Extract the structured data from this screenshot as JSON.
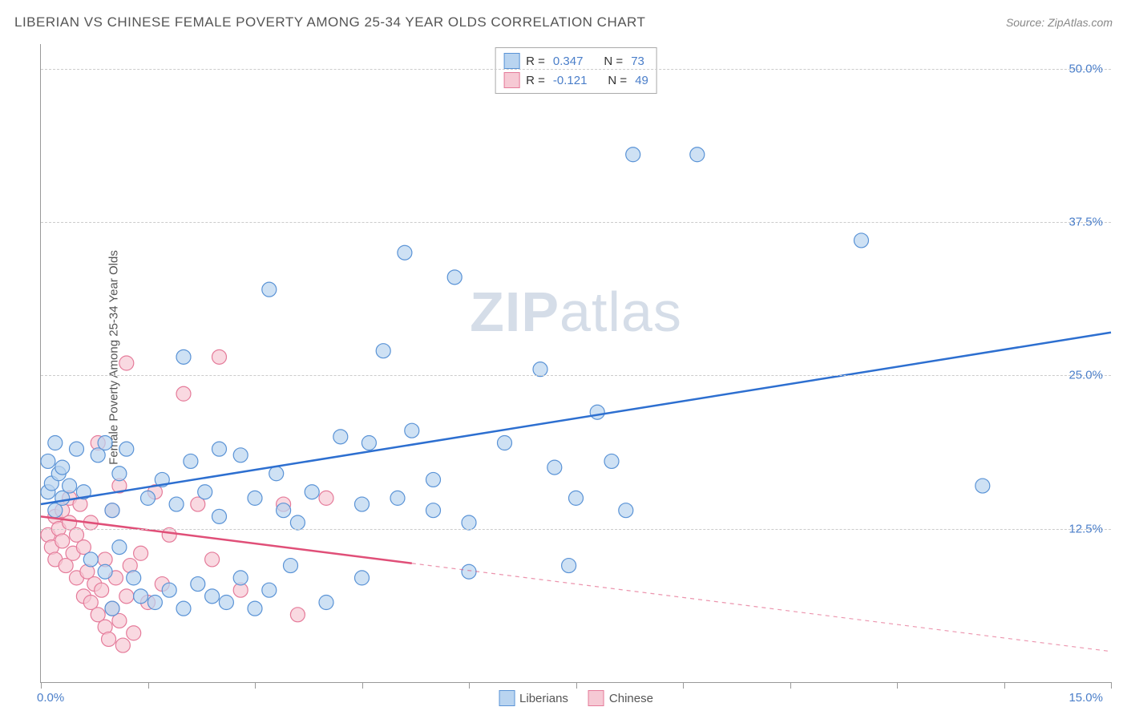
{
  "header": {
    "title": "LIBERIAN VS CHINESE FEMALE POVERTY AMONG 25-34 YEAR OLDS CORRELATION CHART",
    "source": "Source: ZipAtlas.com"
  },
  "chart": {
    "type": "scatter",
    "ylabel": "Female Poverty Among 25-34 Year Olds",
    "xlim": [
      0,
      15
    ],
    "ylim": [
      0,
      52
    ],
    "x_tick_positions": [
      0,
      1.5,
      3,
      4.5,
      6,
      7.5,
      9,
      10.5,
      12,
      13.5,
      15
    ],
    "x_tick_labels": {
      "left": "0.0%",
      "right": "15.0%"
    },
    "y_gridlines": [
      12.5,
      25.0,
      37.5,
      50.0
    ],
    "y_tick_labels": [
      "12.5%",
      "25.0%",
      "37.5%",
      "50.0%"
    ],
    "background_color": "#ffffff",
    "grid_color": "#cccccc",
    "axis_color": "#999999",
    "tick_label_color": "#4a7ec9",
    "watermark": "ZIPatlas",
    "series": {
      "liberians": {
        "label": "Liberians",
        "marker_fill": "#b9d4f0",
        "marker_stroke": "#5a93d6",
        "line_color": "#2d6fd0",
        "line_width": 2.5,
        "marker_radius": 9,
        "regression": {
          "x1": 0,
          "y1": 14.5,
          "x2": 15,
          "y2": 28.5,
          "solid_to_x": 15
        },
        "points": [
          [
            0.1,
            15.5
          ],
          [
            0.2,
            14.0
          ],
          [
            0.15,
            16.2
          ],
          [
            0.25,
            17.0
          ],
          [
            0.3,
            15.0
          ],
          [
            0.1,
            18.0
          ],
          [
            0.2,
            19.5
          ],
          [
            0.3,
            17.5
          ],
          [
            0.4,
            16.0
          ],
          [
            0.5,
            19.0
          ],
          [
            0.6,
            15.5
          ],
          [
            0.8,
            18.5
          ],
          [
            0.9,
            19.5
          ],
          [
            1.0,
            14.0
          ],
          [
            1.1,
            17.0
          ],
          [
            1.2,
            19.0
          ],
          [
            0.7,
            10.0
          ],
          [
            0.9,
            9.0
          ],
          [
            1.1,
            11.0
          ],
          [
            1.3,
            8.5
          ],
          [
            1.4,
            7.0
          ],
          [
            1.6,
            6.5
          ],
          [
            1.8,
            7.5
          ],
          [
            2.0,
            6.0
          ],
          [
            2.2,
            8.0
          ],
          [
            2.4,
            7.0
          ],
          [
            2.6,
            6.5
          ],
          [
            2.8,
            8.5
          ],
          [
            3.0,
            6.0
          ],
          [
            3.2,
            7.5
          ],
          [
            1.5,
            15.0
          ],
          [
            1.7,
            16.5
          ],
          [
            1.9,
            14.5
          ],
          [
            2.1,
            18.0
          ],
          [
            2.3,
            15.5
          ],
          [
            2.0,
            26.5
          ],
          [
            2.5,
            19.0
          ],
          [
            2.8,
            18.5
          ],
          [
            3.0,
            15.0
          ],
          [
            3.3,
            17.0
          ],
          [
            3.2,
            32.0
          ],
          [
            3.4,
            14.0
          ],
          [
            3.6,
            13.0
          ],
          [
            3.8,
            15.5
          ],
          [
            4.0,
            6.5
          ],
          [
            4.2,
            20.0
          ],
          [
            4.5,
            14.5
          ],
          [
            4.6,
            19.5
          ],
          [
            4.8,
            27.0
          ],
          [
            5.0,
            15.0
          ],
          [
            5.1,
            35.0
          ],
          [
            5.2,
            20.5
          ],
          [
            5.5,
            16.5
          ],
          [
            5.5,
            14.0
          ],
          [
            5.8,
            33.0
          ],
          [
            6.0,
            13.0
          ],
          [
            6.5,
            19.5
          ],
          [
            7.0,
            25.5
          ],
          [
            7.2,
            17.5
          ],
          [
            7.4,
            9.5
          ],
          [
            7.5,
            15.0
          ],
          [
            7.8,
            22.0
          ],
          [
            8.0,
            18.0
          ],
          [
            8.2,
            14.0
          ],
          [
            8.3,
            43.0
          ],
          [
            9.2,
            43.0
          ],
          [
            11.5,
            36.0
          ],
          [
            13.2,
            16.0
          ],
          [
            6.0,
            9.0
          ],
          [
            4.5,
            8.5
          ],
          [
            3.5,
            9.5
          ],
          [
            1.0,
            6.0
          ],
          [
            2.5,
            13.5
          ]
        ]
      },
      "chinese": {
        "label": "Chinese",
        "marker_fill": "#f6c9d4",
        "marker_stroke": "#e57b9a",
        "line_color": "#e04f78",
        "line_width": 2.5,
        "marker_radius": 9,
        "regression": {
          "x1": 0,
          "y1": 13.5,
          "x2": 15,
          "y2": 2.5,
          "solid_to_x": 5.2
        },
        "points": [
          [
            0.1,
            12.0
          ],
          [
            0.15,
            11.0
          ],
          [
            0.2,
            13.5
          ],
          [
            0.2,
            10.0
          ],
          [
            0.25,
            12.5
          ],
          [
            0.3,
            14.0
          ],
          [
            0.3,
            11.5
          ],
          [
            0.35,
            9.5
          ],
          [
            0.4,
            13.0
          ],
          [
            0.4,
            15.0
          ],
          [
            0.45,
            10.5
          ],
          [
            0.5,
            12.0
          ],
          [
            0.5,
            8.5
          ],
          [
            0.55,
            14.5
          ],
          [
            0.6,
            11.0
          ],
          [
            0.6,
            7.0
          ],
          [
            0.65,
            9.0
          ],
          [
            0.7,
            6.5
          ],
          [
            0.7,
            13.0
          ],
          [
            0.75,
            8.0
          ],
          [
            0.8,
            5.5
          ],
          [
            0.8,
            19.5
          ],
          [
            0.85,
            7.5
          ],
          [
            0.9,
            4.5
          ],
          [
            0.9,
            10.0
          ],
          [
            0.95,
            3.5
          ],
          [
            1.0,
            6.0
          ],
          [
            1.0,
            14.0
          ],
          [
            1.05,
            8.5
          ],
          [
            1.1,
            5.0
          ],
          [
            1.1,
            16.0
          ],
          [
            1.15,
            3.0
          ],
          [
            1.2,
            7.0
          ],
          [
            1.2,
            26.0
          ],
          [
            1.25,
            9.5
          ],
          [
            1.3,
            4.0
          ],
          [
            1.4,
            10.5
          ],
          [
            1.5,
            6.5
          ],
          [
            1.6,
            15.5
          ],
          [
            1.7,
            8.0
          ],
          [
            1.8,
            12.0
          ],
          [
            2.0,
            23.5
          ],
          [
            2.2,
            14.5
          ],
          [
            2.4,
            10.0
          ],
          [
            2.5,
            26.5
          ],
          [
            2.8,
            7.5
          ],
          [
            3.4,
            14.5
          ],
          [
            3.6,
            5.5
          ],
          [
            4.0,
            15.0
          ]
        ]
      }
    },
    "legend_top": [
      {
        "swatch_fill": "#b9d4f0",
        "swatch_stroke": "#5a93d6",
        "r_label": "R =",
        "r_value": "0.347",
        "n_label": "N =",
        "n_value": "73"
      },
      {
        "swatch_fill": "#f6c9d4",
        "swatch_stroke": "#e57b9a",
        "r_label": "R =",
        "r_value": "-0.121",
        "n_label": "N =",
        "n_value": "49"
      }
    ],
    "legend_bottom": [
      {
        "swatch_fill": "#b9d4f0",
        "swatch_stroke": "#5a93d6",
        "label": "Liberians"
      },
      {
        "swatch_fill": "#f6c9d4",
        "swatch_stroke": "#e57b9a",
        "label": "Chinese"
      }
    ]
  }
}
